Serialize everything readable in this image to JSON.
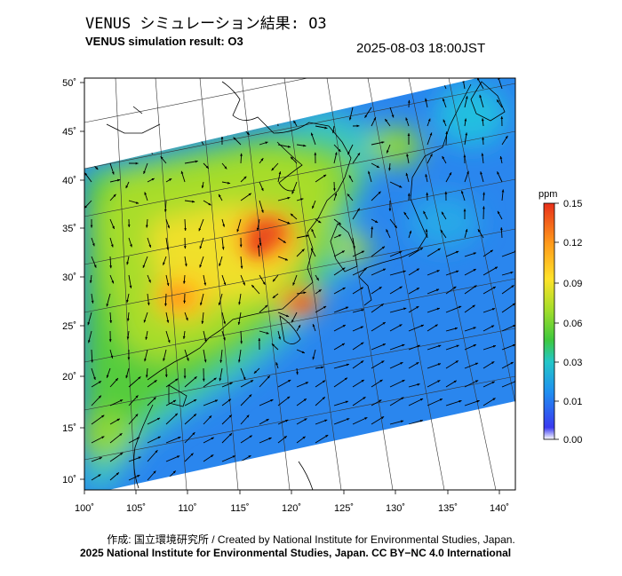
{
  "title_jp": "VENUS シミュレーション結果: O3",
  "title_en": "VENUS simulation result: O3",
  "timestamp": "2025-08-03 18:00JST",
  "map": {
    "lon_ticks": [
      "100˚",
      "105˚",
      "110˚",
      "115˚",
      "120˚",
      "125˚",
      "130˚",
      "135˚",
      "140˚"
    ],
    "lat_ticks": [
      "10˚",
      "15˚",
      "20˚",
      "25˚",
      "30˚",
      "35˚",
      "40˚",
      "45˚",
      "50˚"
    ],
    "lon_range": [
      100,
      141
    ],
    "lat_range": [
      9,
      51
    ]
  },
  "colorbar": {
    "unit": "ppm",
    "labels": [
      "0.15",
      "0.12",
      "0.09",
      "0.06",
      "0.03",
      "0.01",
      "0.00"
    ],
    "colors": [
      "#ffffff",
      "#3a3af0",
      "#1f8ff0",
      "#23c7c7",
      "#3ec83e",
      "#a4de2a",
      "#ffe22a",
      "#ff9a1a",
      "#e8301a"
    ]
  },
  "credit_line1": "作成: 国立環境研究所 / Created by National Institute for Environmental Studies, Japan.",
  "credit_line2": "2025 National Institute for Environmental Studies, Japan. CC BY−NC 4.0 International"
}
